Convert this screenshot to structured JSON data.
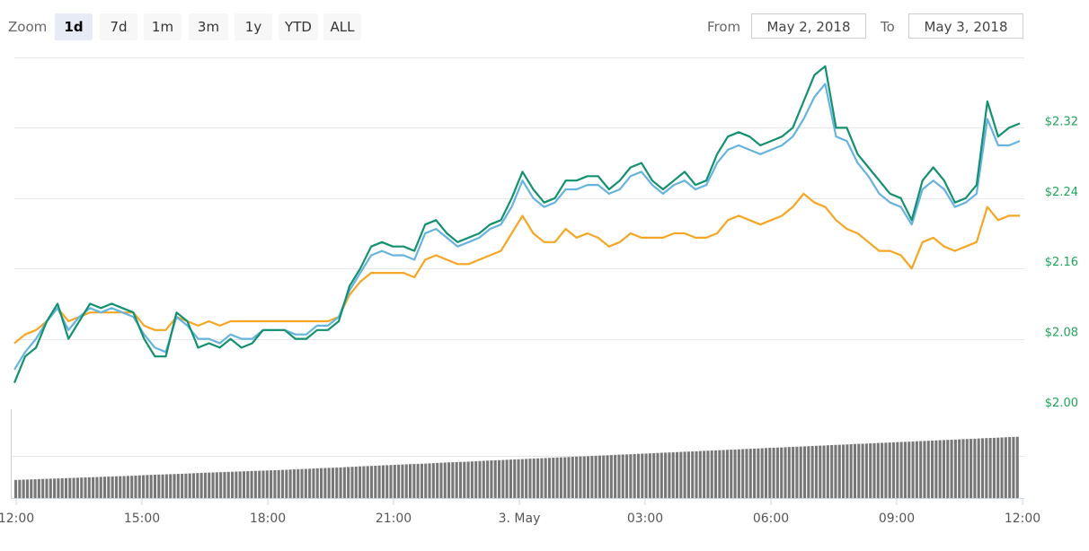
{
  "toolbar": {
    "zoom_label": "Zoom",
    "zoom_buttons": [
      "1d",
      "7d",
      "1m",
      "3m",
      "1y",
      "YTD",
      "ALL"
    ],
    "active_zoom": "1d",
    "from_label": "From",
    "from_value": "May 2, 2018",
    "to_label": "To",
    "to_value": "May 3, 2018"
  },
  "chart_data": {
    "type": "line",
    "x_ticks": [
      "12:00",
      "15:00",
      "18:00",
      "21:00",
      "3. May",
      "03:00",
      "06:00",
      "09:00",
      "12:00"
    ],
    "y_ticks": [
      "$2.32",
      "$2.24",
      "$2.16",
      "$2.08",
      "$2.00"
    ],
    "ylim": [
      2.0,
      2.4
    ],
    "grid": true,
    "colors": {
      "green": "#13906f",
      "blue": "#67b3e0",
      "orange": "#f5a623",
      "grid": "#e6e6e6",
      "volume": "#777777",
      "axis_label": "#20a35a"
    },
    "series": [
      {
        "color": "#13906f",
        "values": [
          2.03,
          2.06,
          2.07,
          2.1,
          2.12,
          2.08,
          2.1,
          2.12,
          2.115,
          2.12,
          2.115,
          2.11,
          2.08,
          2.06,
          2.06,
          2.11,
          2.1,
          2.07,
          2.075,
          2.07,
          2.08,
          2.07,
          2.075,
          2.09,
          2.09,
          2.09,
          2.08,
          2.08,
          2.09,
          2.09,
          2.1,
          2.14,
          2.16,
          2.185,
          2.19,
          2.185,
          2.185,
          2.18,
          2.21,
          2.215,
          2.2,
          2.19,
          2.195,
          2.2,
          2.21,
          2.215,
          2.24,
          2.27,
          2.25,
          2.235,
          2.24,
          2.26,
          2.26,
          2.265,
          2.265,
          2.25,
          2.26,
          2.275,
          2.28,
          2.26,
          2.25,
          2.26,
          2.27,
          2.255,
          2.26,
          2.29,
          2.31,
          2.315,
          2.31,
          2.3,
          2.305,
          2.31,
          2.32,
          2.35,
          2.38,
          2.39,
          2.32,
          2.32,
          2.29,
          2.275,
          2.26,
          2.245,
          2.24,
          2.215,
          2.26,
          2.275,
          2.26,
          2.235,
          2.24,
          2.255,
          2.35,
          2.31,
          2.32,
          2.325
        ]
      },
      {
        "color": "#67b3e0",
        "values": [
          2.045,
          2.065,
          2.08,
          2.1,
          2.115,
          2.09,
          2.105,
          2.115,
          2.11,
          2.115,
          2.11,
          2.105,
          2.085,
          2.07,
          2.065,
          2.105,
          2.095,
          2.08,
          2.08,
          2.075,
          2.085,
          2.08,
          2.08,
          2.09,
          2.09,
          2.09,
          2.085,
          2.085,
          2.095,
          2.095,
          2.105,
          2.135,
          2.155,
          2.175,
          2.18,
          2.175,
          2.175,
          2.17,
          2.2,
          2.205,
          2.195,
          2.185,
          2.19,
          2.195,
          2.205,
          2.21,
          2.23,
          2.26,
          2.24,
          2.23,
          2.235,
          2.25,
          2.25,
          2.255,
          2.255,
          2.245,
          2.25,
          2.265,
          2.27,
          2.255,
          2.245,
          2.255,
          2.26,
          2.25,
          2.255,
          2.28,
          2.295,
          2.3,
          2.295,
          2.29,
          2.295,
          2.3,
          2.31,
          2.33,
          2.355,
          2.37,
          2.31,
          2.305,
          2.28,
          2.265,
          2.245,
          2.235,
          2.23,
          2.21,
          2.25,
          2.26,
          2.25,
          2.23,
          2.235,
          2.245,
          2.33,
          2.3,
          2.3,
          2.305
        ]
      },
      {
        "color": "#f5a623",
        "values": [
          2.075,
          2.085,
          2.09,
          2.1,
          2.115,
          2.1,
          2.105,
          2.11,
          2.11,
          2.11,
          2.11,
          2.11,
          2.095,
          2.09,
          2.09,
          2.105,
          2.1,
          2.095,
          2.1,
          2.095,
          2.1,
          2.1,
          2.1,
          2.1,
          2.1,
          2.1,
          2.1,
          2.1,
          2.1,
          2.1,
          2.105,
          2.13,
          2.145,
          2.155,
          2.155,
          2.155,
          2.155,
          2.15,
          2.17,
          2.175,
          2.17,
          2.165,
          2.165,
          2.17,
          2.175,
          2.18,
          2.2,
          2.22,
          2.2,
          2.19,
          2.19,
          2.205,
          2.195,
          2.2,
          2.195,
          2.185,
          2.19,
          2.2,
          2.195,
          2.195,
          2.195,
          2.2,
          2.2,
          2.195,
          2.195,
          2.2,
          2.215,
          2.22,
          2.215,
          2.21,
          2.215,
          2.22,
          2.23,
          2.245,
          2.235,
          2.23,
          2.215,
          2.205,
          2.2,
          2.19,
          2.18,
          2.18,
          2.175,
          2.16,
          2.19,
          2.195,
          2.185,
          2.18,
          2.185,
          2.19,
          2.23,
          2.215,
          2.22,
          2.22
        ]
      }
    ],
    "volume": {
      "color": "#777777",
      "values": [
        1,
        1.2,
        1.4,
        1.6,
        1.8,
        2,
        2.2,
        2.4,
        2.6,
        2.8,
        3,
        3.2,
        3.5,
        3.7,
        3.9,
        4.1,
        4.3,
        4.6,
        4.8,
        5,
        5.2,
        5.4,
        5.6,
        5.8,
        6,
        6.2,
        6.5,
        6.7,
        7,
        7.2,
        7.4,
        7.7,
        8,
        8.2,
        8.5,
        8.7,
        9,
        9.2,
        9.4,
        9.7,
        10,
        10.2,
        10.4,
        10.7,
        11,
        11.2,
        11.5,
        11.7,
        12,
        12.2,
        12.5,
        12.7,
        13,
        13.2,
        13.5,
        13.7,
        14,
        14.2,
        14.5,
        14.7,
        15,
        15.2,
        15.5,
        15.7,
        16,
        16.2,
        16.5,
        16.7,
        17,
        17.2,
        17.5,
        17.7,
        18,
        18.2,
        18.5,
        18.7,
        19,
        19.2,
        19.5,
        19.7,
        20,
        20.2,
        20.5,
        20.7,
        21,
        21.2,
        21.5,
        21.7,
        22,
        22.2,
        22.5,
        22.7,
        23,
        23.2
      ]
    }
  }
}
